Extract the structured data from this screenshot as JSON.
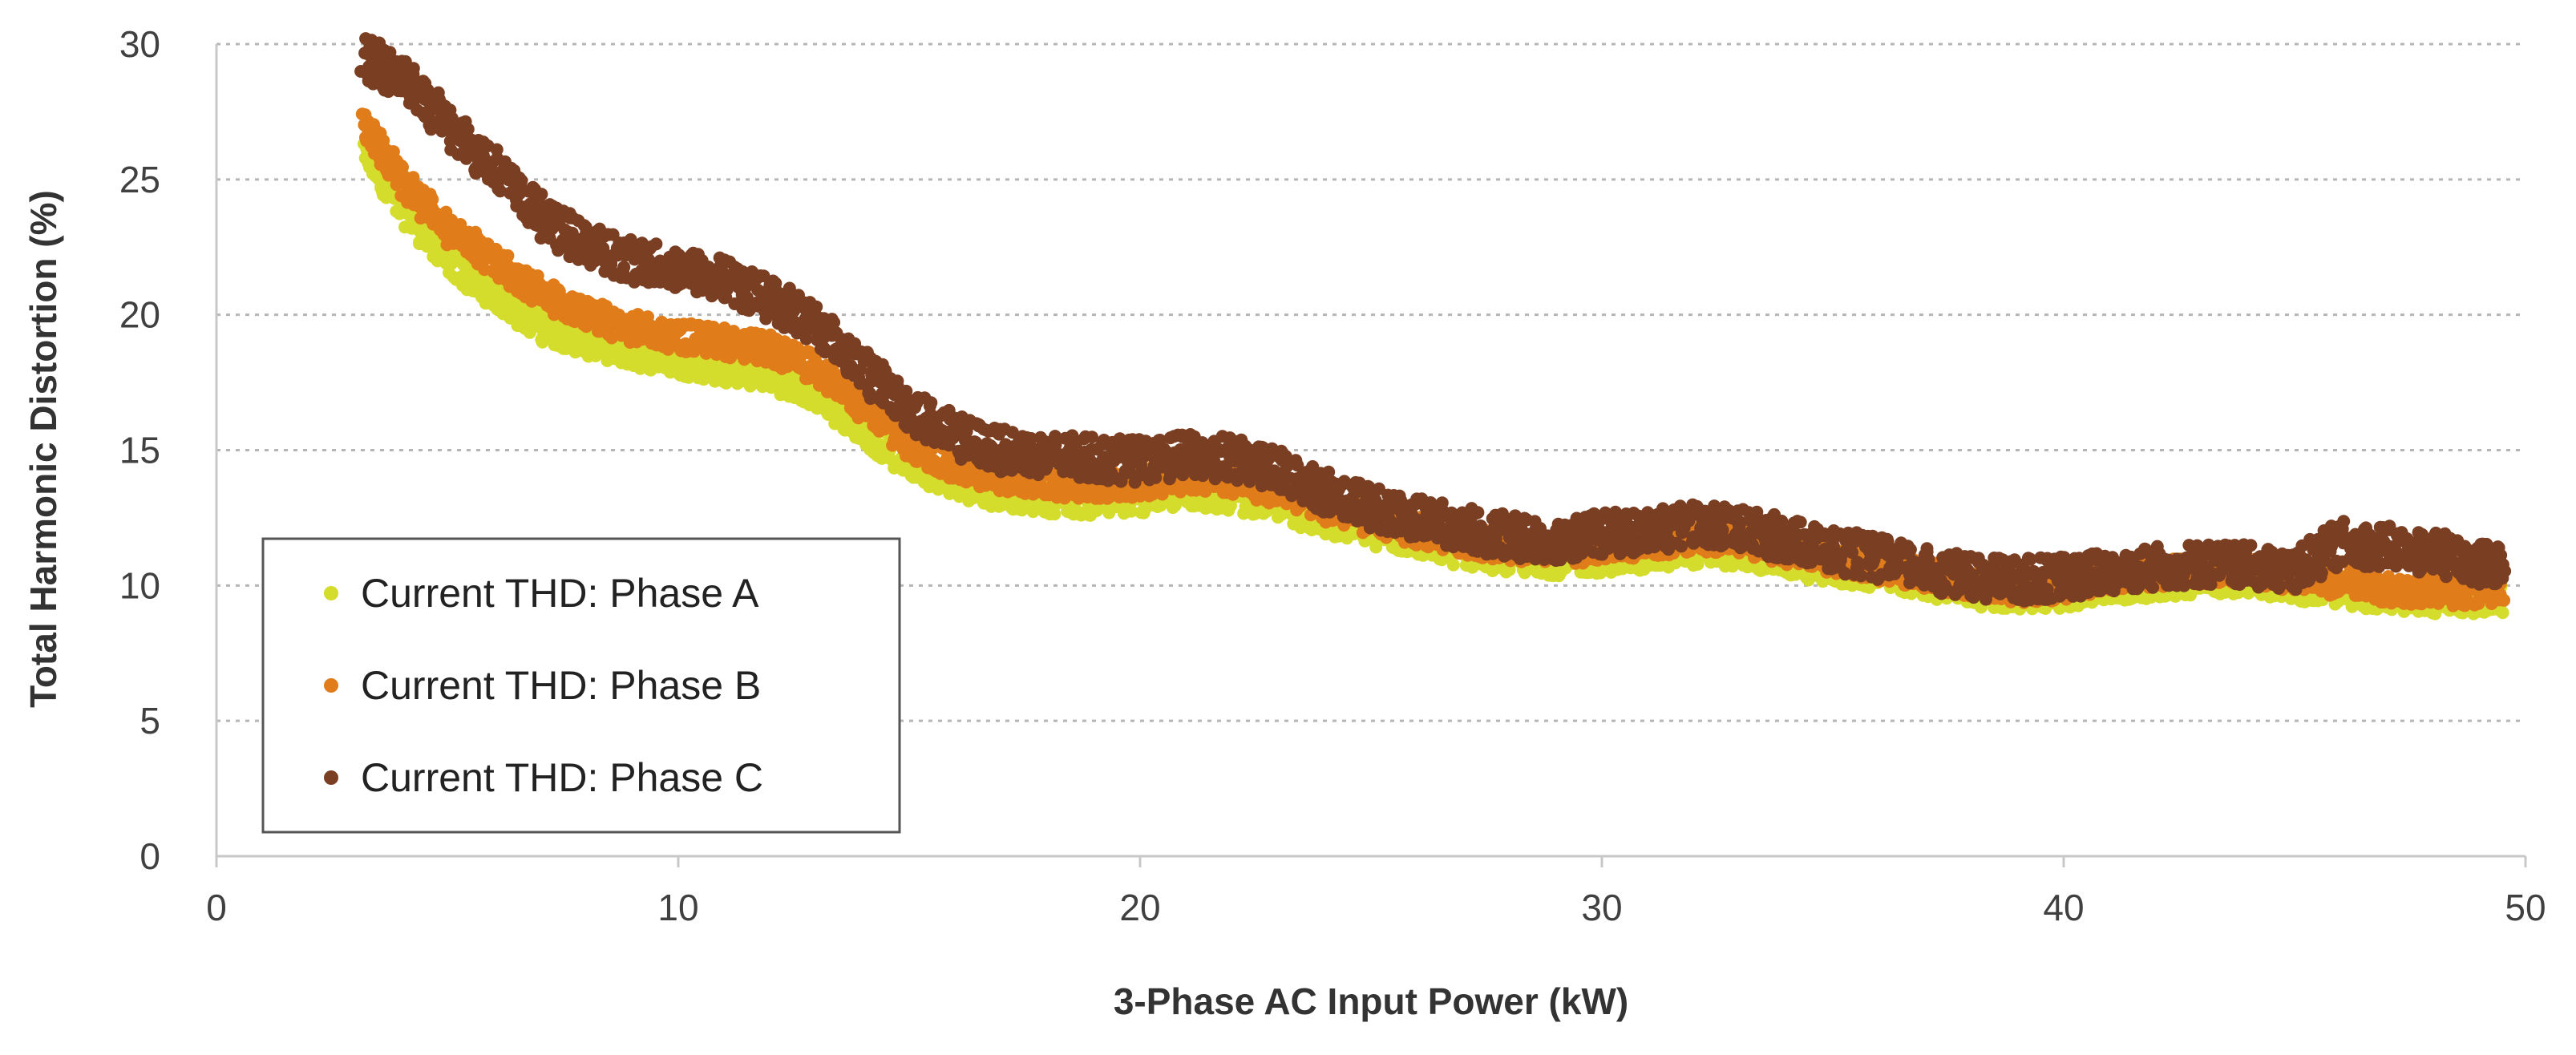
{
  "chart_data": {
    "type": "scatter",
    "title": "",
    "xlabel": "3-Phase AC Input Power (kW)",
    "ylabel": "Total Harmonic Distortion (%)",
    "xlim": [
      0,
      50
    ],
    "ylim": [
      0,
      30
    ],
    "x_ticks": [
      "0",
      "10",
      "20",
      "30",
      "40",
      "50"
    ],
    "y_ticks": [
      "0",
      "5",
      "10",
      "15",
      "20",
      "25",
      "30"
    ],
    "grid": "horizontal dotted",
    "legend_position": "bottom-left",
    "series": [
      {
        "name": "Current THD: Phase A",
        "color": "#d4dc2c",
        "x": [
          3.2,
          4,
          5,
          6,
          7,
          8,
          9,
          10,
          11,
          12,
          13,
          14,
          15,
          16,
          17,
          18,
          19,
          20,
          21,
          22,
          23,
          24,
          25,
          26,
          27,
          28,
          29,
          30,
          31,
          32,
          33,
          34,
          35,
          36,
          37,
          38,
          39,
          40,
          41,
          42,
          43,
          44,
          45,
          46,
          47,
          48,
          49,
          49.5
        ],
        "y": [
          26.0,
          24.0,
          22.0,
          20.8,
          19.6,
          19.0,
          18.6,
          18.3,
          18.0,
          17.8,
          17.0,
          15.8,
          14.5,
          13.8,
          13.4,
          13.2,
          13.1,
          13.2,
          13.4,
          13.3,
          13.0,
          12.4,
          12.0,
          11.6,
          11.2,
          11.0,
          10.9,
          11.0,
          11.1,
          11.3,
          11.2,
          10.9,
          10.6,
          10.4,
          10.1,
          9.8,
          9.6,
          9.7,
          9.9,
          10.1,
          10.2,
          10.2,
          10.0,
          9.8,
          9.6,
          9.5,
          9.5,
          9.5
        ]
      },
      {
        "name": "Current THD: Phase B",
        "color": "#e07d1a",
        "x": [
          3.2,
          4,
          5,
          6,
          7,
          8,
          9,
          10,
          11,
          12,
          13,
          14,
          15,
          16,
          17,
          18,
          19,
          20,
          21,
          22,
          23,
          24,
          25,
          26,
          27,
          28,
          29,
          30,
          31,
          32,
          33,
          34,
          35,
          36,
          37,
          38,
          39,
          40,
          41,
          42,
          43,
          44,
          45,
          46,
          47,
          48,
          49,
          49.5
        ],
        "y": [
          27.0,
          25.0,
          23.2,
          22.0,
          20.8,
          20.0,
          19.5,
          19.2,
          19.0,
          18.7,
          18.0,
          16.6,
          15.2,
          14.4,
          14.0,
          13.8,
          13.7,
          13.8,
          14.0,
          13.9,
          13.5,
          12.9,
          12.4,
          12.0,
          11.7,
          11.4,
          11.3,
          11.4,
          11.6,
          11.8,
          11.7,
          11.3,
          11.0,
          10.7,
          10.4,
          10.1,
          9.9,
          10.0,
          10.3,
          10.5,
          10.6,
          10.5,
          10.3,
          10.1,
          9.9,
          9.8,
          9.8,
          9.8
        ]
      },
      {
        "name": "Current THD: Phase C",
        "color": "#7a3e22",
        "x": [
          3.2,
          4,
          5,
          6,
          7,
          8,
          9,
          10,
          11,
          12,
          13,
          14,
          15,
          16,
          17,
          18,
          19,
          20,
          21,
          22,
          23,
          24,
          25,
          26,
          27,
          28,
          29,
          30,
          31,
          32,
          33,
          34,
          35,
          36,
          37,
          38,
          39,
          40,
          41,
          42,
          43,
          44,
          45,
          46,
          47,
          48,
          49,
          49.5
        ],
        "y": [
          29.5,
          28.8,
          27.0,
          25.5,
          23.6,
          22.6,
          22.0,
          21.7,
          21.3,
          20.6,
          19.7,
          18.0,
          16.5,
          15.5,
          15.0,
          14.8,
          14.7,
          14.6,
          14.8,
          14.7,
          14.2,
          13.5,
          12.9,
          12.5,
          12.1,
          11.8,
          11.7,
          11.9,
          12.0,
          12.2,
          12.1,
          11.7,
          11.3,
          11.0,
          10.6,
          10.3,
          10.2,
          10.3,
          10.5,
          10.7,
          10.8,
          10.7,
          10.5,
          11.6,
          11.4,
          11.2,
          10.8,
          10.6
        ]
      }
    ]
  }
}
